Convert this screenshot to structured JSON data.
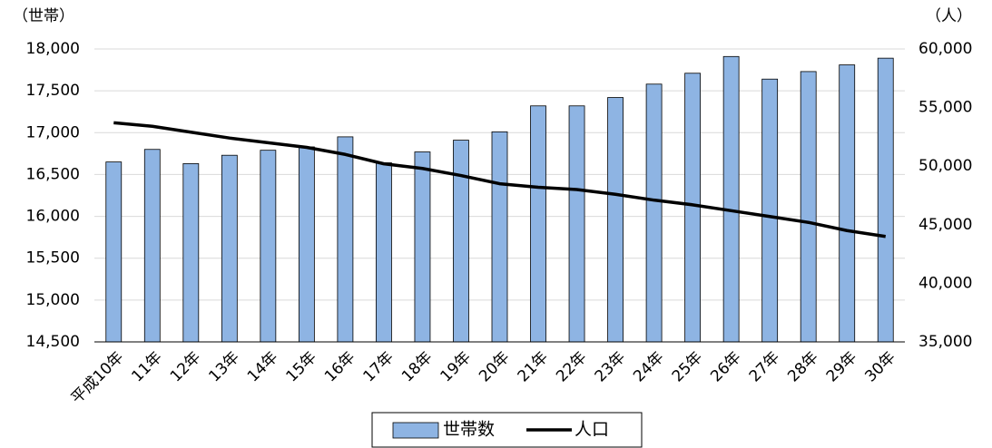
{
  "chart_data": {
    "type": "bar-line",
    "y_label": "（世帯）",
    "y2_label": "（人）",
    "categories": [
      "平成10年",
      "11年",
      "12年",
      "13年",
      "14年",
      "15年",
      "16年",
      "17年",
      "18年",
      "19年",
      "20年",
      "21年",
      "22年",
      "23年",
      "24年",
      "25年",
      "26年",
      "27年",
      "28年",
      "29年",
      "30年"
    ],
    "series": [
      {
        "name": "世帯数",
        "type": "bar",
        "color": "#8eb4e3",
        "values": [
          16650,
          16800,
          16630,
          16730,
          16790,
          16830,
          16950,
          16640,
          16770,
          16910,
          17010,
          17320,
          17320,
          17420,
          17580,
          17710,
          17910,
          17640,
          17730,
          17810,
          17890
        ]
      },
      {
        "name": "人口",
        "type": "line",
        "axis": "y2",
        "color": "#000000",
        "values": [
          53700,
          53400,
          52900,
          52400,
          52000,
          51600,
          51000,
          50200,
          49800,
          49200,
          48500,
          48200,
          48000,
          47600,
          47100,
          46700,
          46200,
          45700,
          45200,
          44500,
          44000
        ]
      }
    ],
    "ylim": [
      14500,
      18000
    ],
    "yticks": [
      {
        "value": 14500,
        "label": "14,500"
      },
      {
        "value": 15000,
        "label": "15,000"
      },
      {
        "value": 15500,
        "label": "15,500"
      },
      {
        "value": 16000,
        "label": "16,000"
      },
      {
        "value": 16500,
        "label": "16,500"
      },
      {
        "value": 17000,
        "label": "17,000"
      },
      {
        "value": 17500,
        "label": "17,500"
      },
      {
        "value": 18000,
        "label": "18,000"
      }
    ],
    "y2lim": [
      35000,
      60000
    ],
    "y2ticks": [
      {
        "value": 35000,
        "label": "35,000"
      },
      {
        "value": 40000,
        "label": "40,000"
      },
      {
        "value": 45000,
        "label": "45,000"
      },
      {
        "value": 50000,
        "label": "50,000"
      },
      {
        "value": 55000,
        "label": "55,000"
      },
      {
        "value": 60000,
        "label": "60,000"
      }
    ],
    "grid": true,
    "legend": "bottom"
  }
}
